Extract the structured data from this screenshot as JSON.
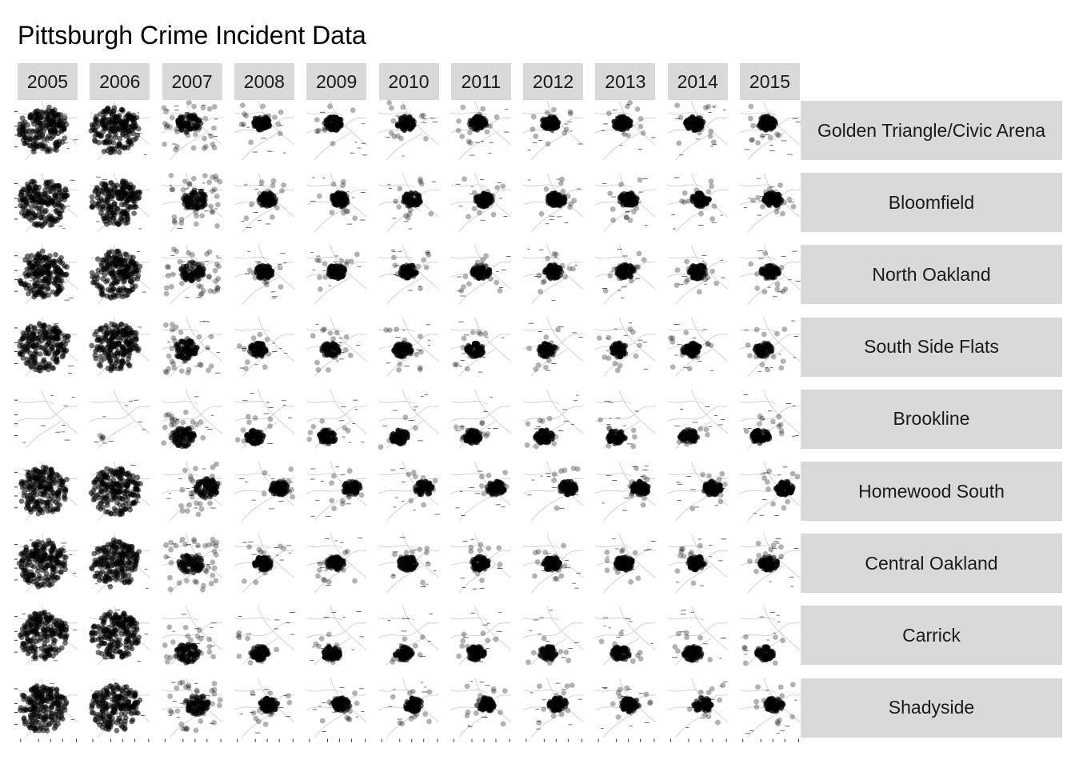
{
  "title": "Pittsburgh Crime Incident Data",
  "chart_data": {
    "type": "scatter",
    "title": "Pittsburgh Crime Incident Data",
    "facet_columns": [
      "2005",
      "2006",
      "2007",
      "2008",
      "2009",
      "2010",
      "2011",
      "2012",
      "2013",
      "2014",
      "2015"
    ],
    "facet_rows": [
      "Golden Triangle/Civic Arena",
      "Bloomfield",
      "North Oakland",
      "South Side Flats",
      "Brookline",
      "Homewood South",
      "Central Oakland",
      "Carrick",
      "Shadyside"
    ],
    "xlabel": "",
    "ylabel": "",
    "grid": false,
    "point_color": "#000000",
    "point_alpha": 0.35,
    "strip_color": "#d9d9d9",
    "background": "basemap of Pittsburgh streets and rivers, greyscale",
    "panels": {
      "hotspot_x_fraction_by_neighborhood": {
        "Golden Triangle/Civic Arena": 0.45,
        "Bloomfield": 0.55,
        "North Oakland": 0.5,
        "South Side Flats": 0.4,
        "Brookline": 0.35,
        "Homewood South": 0.75,
        "Central Oakland": 0.48,
        "Carrick": 0.42,
        "Shadyside": 0.58
      },
      "hotspot_y_fraction_by_neighborhood": {
        "Golden Triangle/Civic Arena": 0.38,
        "Bloomfield": 0.45,
        "North Oakland": 0.45,
        "South Side Flats": 0.55,
        "Brookline": 0.8,
        "Homewood South": 0.45,
        "Central Oakland": 0.5,
        "Carrick": 0.8,
        "Shadyside": 0.45
      },
      "coverage_note": "2005 and 2006 panels are dense across the whole area except Brookline; later years concentrate at each neighborhood's hotspot"
    }
  }
}
